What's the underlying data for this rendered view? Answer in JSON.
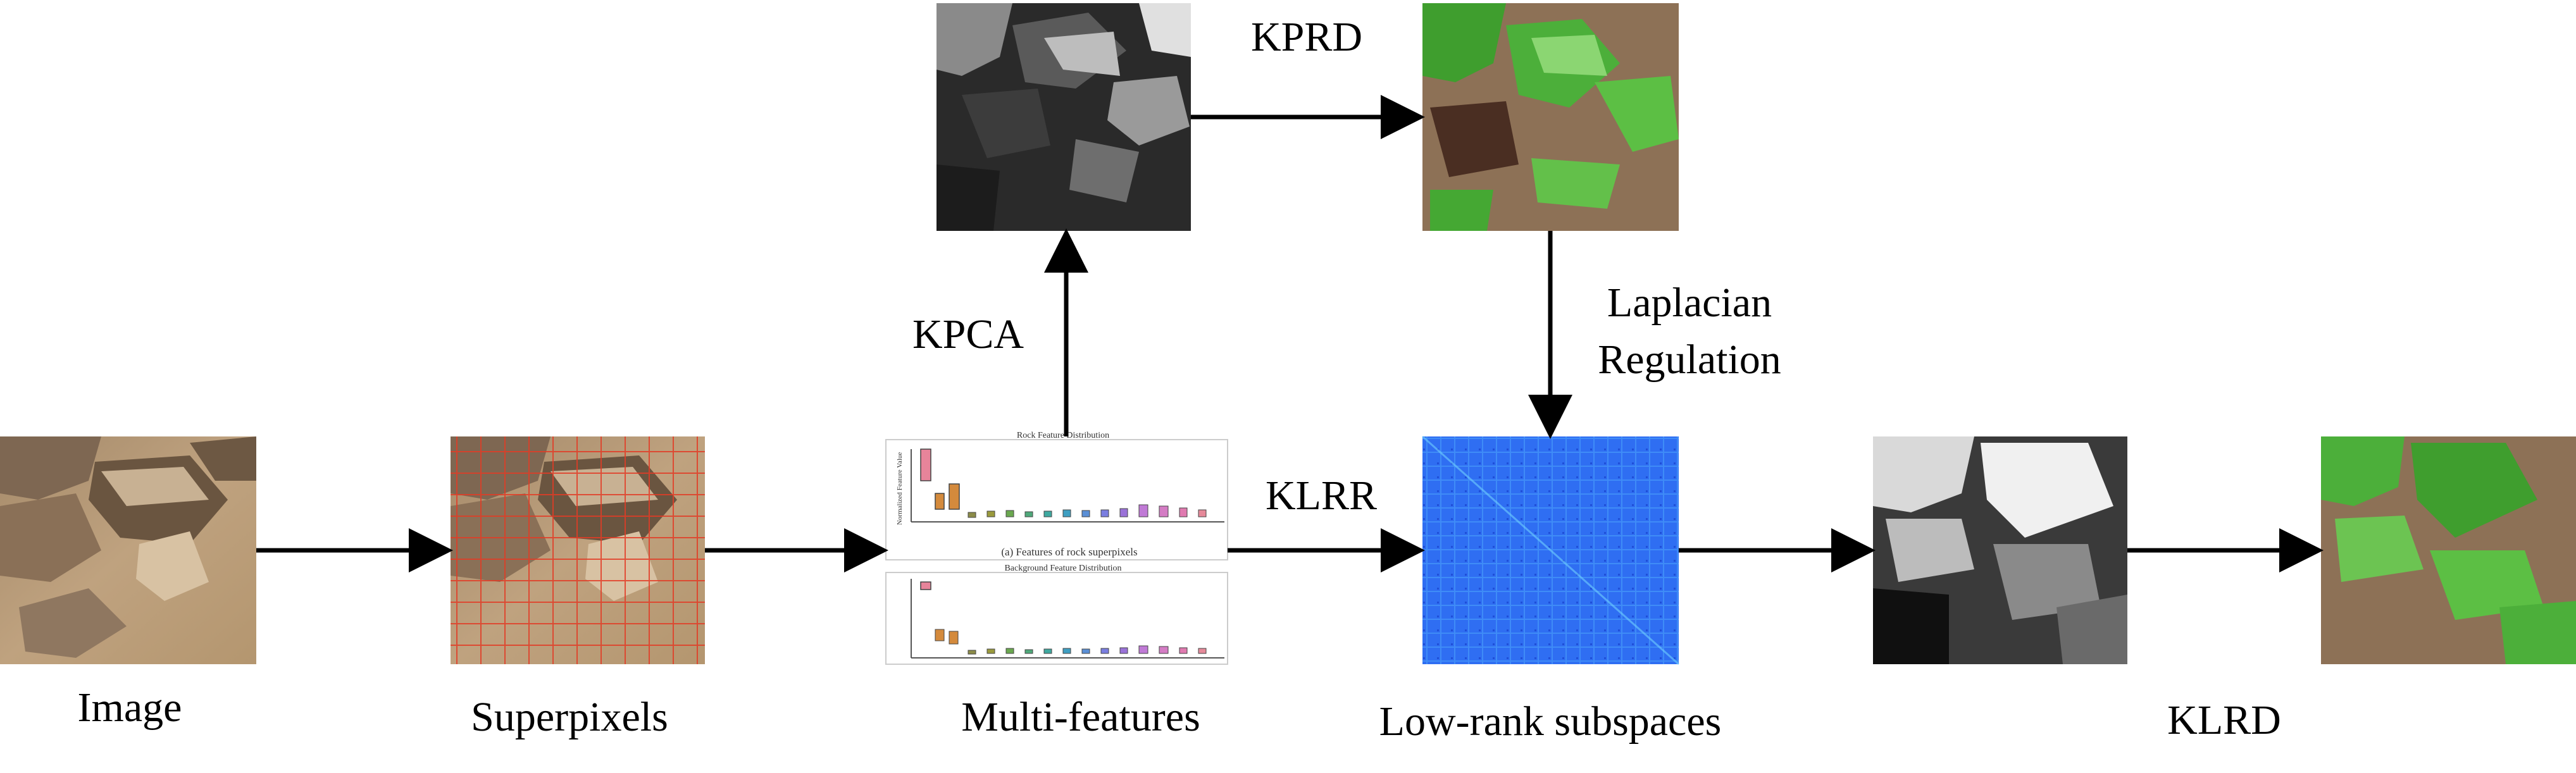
{
  "labels": {
    "image": "Image",
    "superpixels": "Superpixels",
    "multi_features": "Multi-features",
    "low_rank": "Low-rank subspaces",
    "klrd": "KLRD",
    "kprd": "KPRD",
    "kpca": "KPCA",
    "klrr": "KLRR",
    "laplacian_line1": "Laplacian",
    "laplacian_line2": "Regulation"
  },
  "feature_plots": {
    "rock_title": "Rock Feature Distribution",
    "rock_caption": "(a) Features of rock superpixels",
    "background_title": "Background Feature Distribution",
    "ylabel": "Normalized Feature Value"
  },
  "colors": {
    "arrow": "#000000",
    "rock_green": "#4caf3a",
    "terrain": "#8d7156",
    "affinity_blue": "#2e6ff0"
  }
}
